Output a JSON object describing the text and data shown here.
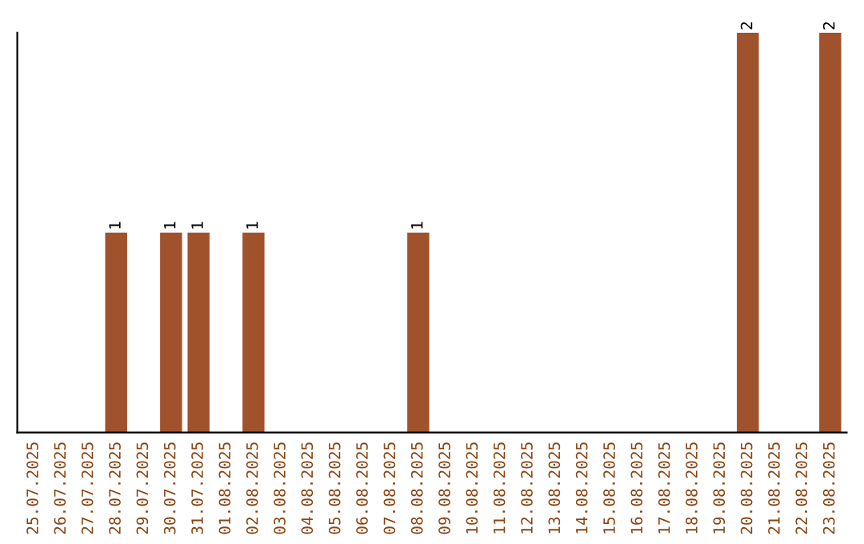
{
  "chart_data": {
    "type": "bar",
    "categories": [
      "25.07.2025",
      "26.07.2025",
      "27.07.2025",
      "28.07.2025",
      "29.07.2025",
      "30.07.2025",
      "31.07.2025",
      "01.08.2025",
      "02.08.2025",
      "03.08.2025",
      "04.08.2025",
      "05.08.2025",
      "06.08.2025",
      "07.08.2025",
      "08.08.2025",
      "09.08.2025",
      "10.08.2025",
      "11.08.2025",
      "12.08.2025",
      "13.08.2025",
      "14.08.2025",
      "15.08.2025",
      "16.08.2025",
      "17.08.2025",
      "18.08.2025",
      "19.08.2025",
      "20.08.2025",
      "21.08.2025",
      "22.08.2025",
      "23.08.2025"
    ],
    "values": [
      0,
      0,
      0,
      1,
      0,
      1,
      1,
      0,
      1,
      0,
      0,
      0,
      0,
      0,
      1,
      0,
      0,
      0,
      0,
      0,
      0,
      0,
      0,
      0,
      0,
      0,
      2,
      0,
      0,
      2
    ],
    "value_labels": [
      null,
      null,
      null,
      "1",
      null,
      "1",
      "1",
      null,
      "1",
      null,
      null,
      null,
      null,
      null,
      "1",
      null,
      null,
      null,
      null,
      null,
      null,
      null,
      null,
      null,
      null,
      null,
      "2",
      null,
      null,
      "2"
    ],
    "color": "#a0522d",
    "tick_labels": "x",
    "grid": false,
    "legend": false
  }
}
